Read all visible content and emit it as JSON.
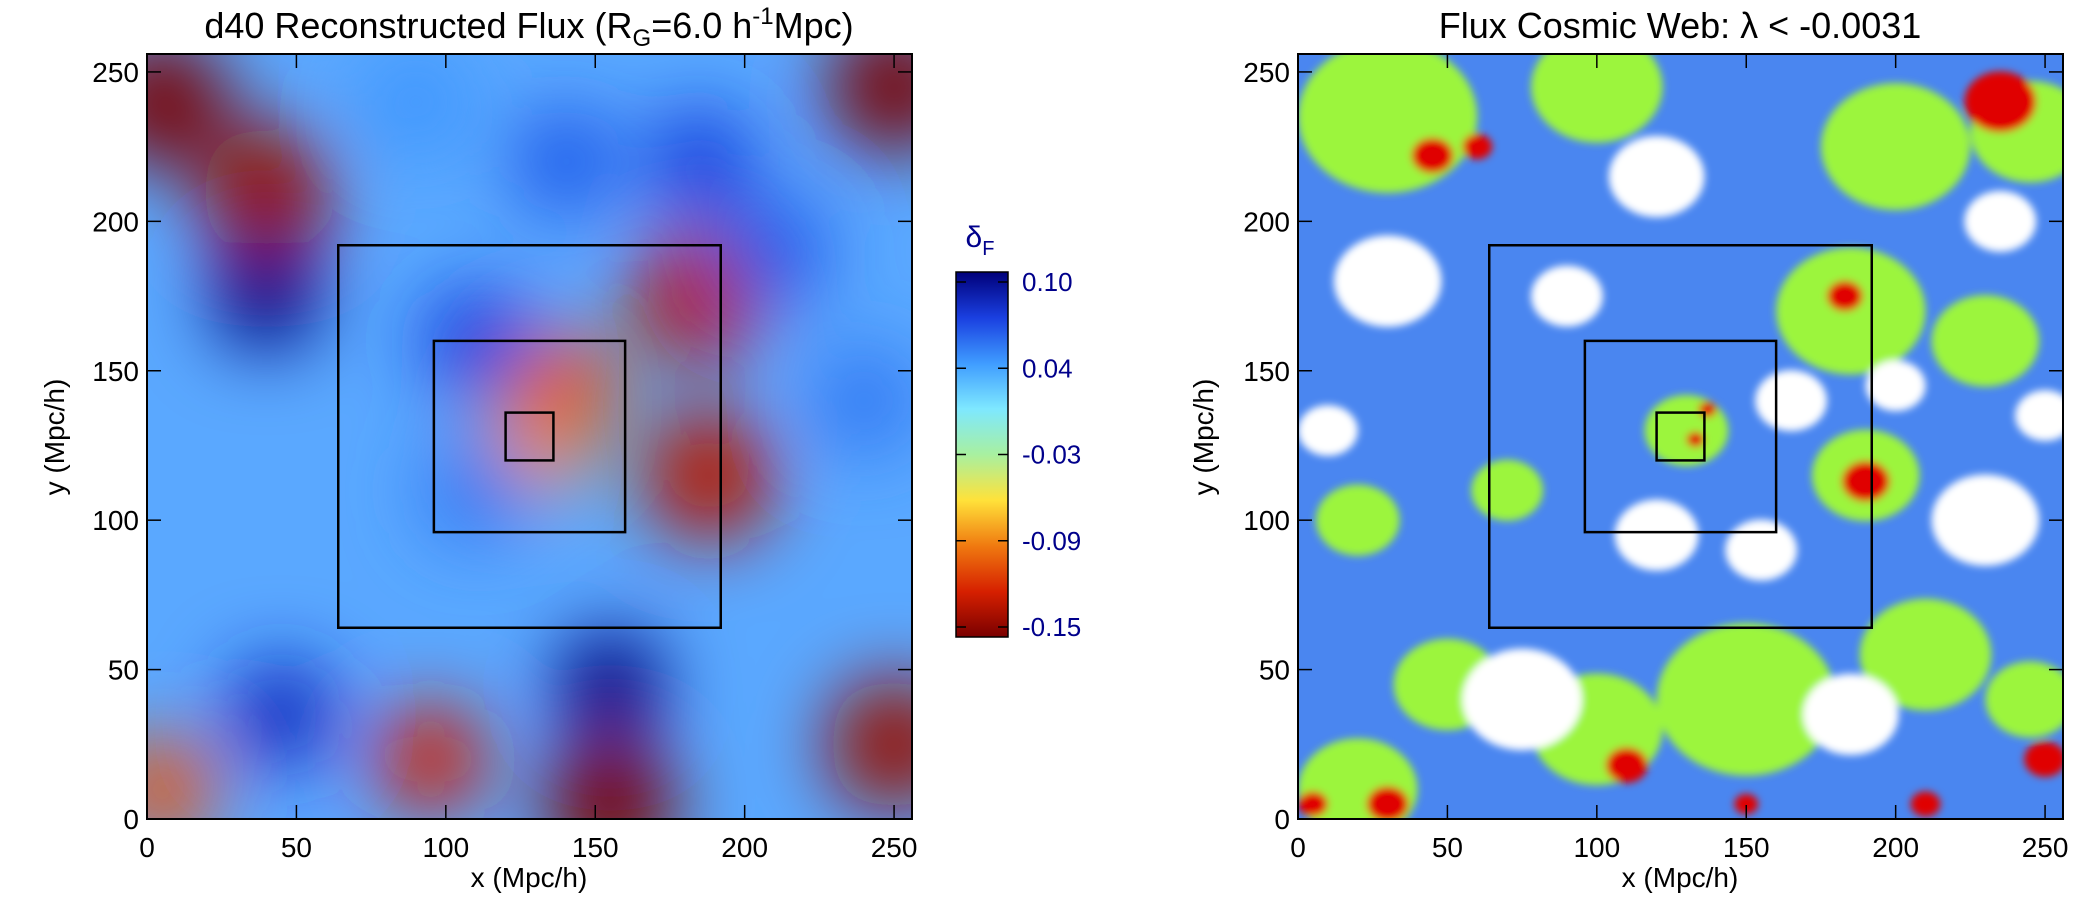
{
  "chart_data": [
    {
      "type": "heatmap",
      "title": {
        "prefix": "d40 Reconstructed Flux (R",
        "sub": "G",
        "mid": "=6.0 h",
        "sup": "-1",
        "suffix": "Mpc)"
      },
      "xlabel": "x (Mpc/h)",
      "ylabel": "y (Mpc/h)",
      "xlim": [
        0,
        256
      ],
      "ylim": [
        0,
        256
      ],
      "x_ticks": [
        "0",
        "50",
        "100",
        "150",
        "200",
        "250"
      ],
      "y_ticks": [
        "0",
        "50",
        "100",
        "150",
        "200",
        "250"
      ],
      "colorbar": {
        "label_main": "δ",
        "label_sub": "F",
        "ticks": [
          "0.10",
          "0.04",
          "-0.03",
          "-0.09",
          "-0.15"
        ],
        "range": [
          -0.15,
          0.1
        ],
        "colors": [
          "#7a0000",
          "#d62000",
          "#f07a10",
          "#ffe23a",
          "#a8f0a0",
          "#7ee8ff",
          "#3f9cff",
          "#1a3fe0",
          "#00007a"
        ]
      },
      "boxes": [
        {
          "name": "outer",
          "x0": 64,
          "x1": 192,
          "y0": 64,
          "y1": 192
        },
        {
          "name": "middle",
          "x0": 96,
          "x1": 160,
          "y0": 96,
          "y1": 160
        },
        {
          "name": "inner",
          "x0": 120,
          "x1": 136,
          "y0": 120,
          "y1": 136
        }
      ],
      "blobs": [
        {
          "x": 5,
          "y": 240,
          "v": -0.15
        },
        {
          "x": 40,
          "y": 210,
          "v": -0.14
        },
        {
          "x": 250,
          "y": 245,
          "v": -0.15
        },
        {
          "x": 185,
          "y": 175,
          "v": -0.13
        },
        {
          "x": 188,
          "y": 115,
          "v": -0.13
        },
        {
          "x": 130,
          "y": 125,
          "v": -0.08
        },
        {
          "x": 140,
          "y": 145,
          "v": -0.1
        },
        {
          "x": 95,
          "y": 20,
          "v": -0.12
        },
        {
          "x": 155,
          "y": 5,
          "v": -0.15
        },
        {
          "x": 250,
          "y": 25,
          "v": -0.14
        },
        {
          "x": 5,
          "y": 10,
          "v": -0.1
        },
        {
          "x": 40,
          "y": 175,
          "v": 0.1
        },
        {
          "x": 155,
          "y": 45,
          "v": 0.1
        },
        {
          "x": 45,
          "y": 35,
          "v": 0.08
        },
        {
          "x": 110,
          "y": 160,
          "v": 0.07
        },
        {
          "x": 185,
          "y": 220,
          "v": 0.07
        },
        {
          "x": 140,
          "y": 220,
          "v": 0.06
        },
        {
          "x": 210,
          "y": 190,
          "v": 0.06
        },
        {
          "x": 240,
          "y": 140,
          "v": 0.05
        },
        {
          "x": 90,
          "y": 240,
          "v": 0.04
        },
        {
          "x": 110,
          "y": 110,
          "v": 0.05
        }
      ]
    },
    {
      "type": "heatmap",
      "title": {
        "prefix": "Flux Cosmic Web: ",
        "lambda": "λ",
        "suffix": " < -0.0031"
      },
      "xlabel": "x (Mpc/h)",
      "ylabel": "y (Mpc/h)",
      "xlim": [
        0,
        256
      ],
      "ylim": [
        0,
        256
      ],
      "x_ticks": [
        "0",
        "50",
        "100",
        "150",
        "200",
        "250"
      ],
      "y_ticks": [
        "0",
        "50",
        "100",
        "150",
        "200",
        "250"
      ],
      "class_colors": {
        "void": "#ffffff",
        "sheet": "#4a86f0",
        "filament": "#9cf53d",
        "knot": "#e00000"
      },
      "boxes": [
        {
          "name": "outer",
          "x0": 64,
          "x1": 192,
          "y0": 64,
          "y1": 192
        },
        {
          "name": "middle",
          "x0": 96,
          "x1": 160,
          "y0": 96,
          "y1": 160
        },
        {
          "name": "inner",
          "x0": 120,
          "x1": 136,
          "y0": 120,
          "y1": 136
        }
      ],
      "regions": [
        {
          "cls": "filament",
          "x": 30,
          "y": 235,
          "r": 30
        },
        {
          "cls": "filament",
          "x": 100,
          "y": 245,
          "r": 22
        },
        {
          "cls": "filament",
          "x": 200,
          "y": 225,
          "r": 25
        },
        {
          "cls": "filament",
          "x": 245,
          "y": 230,
          "r": 20
        },
        {
          "cls": "filament",
          "x": 185,
          "y": 170,
          "r": 25
        },
        {
          "cls": "filament",
          "x": 230,
          "y": 160,
          "r": 18
        },
        {
          "cls": "filament",
          "x": 130,
          "y": 130,
          "r": 14
        },
        {
          "cls": "filament",
          "x": 190,
          "y": 115,
          "r": 18
        },
        {
          "cls": "filament",
          "x": 70,
          "y": 110,
          "r": 12
        },
        {
          "cls": "filament",
          "x": 20,
          "y": 100,
          "r": 14
        },
        {
          "cls": "filament",
          "x": 150,
          "y": 40,
          "r": 30
        },
        {
          "cls": "filament",
          "x": 100,
          "y": 30,
          "r": 22
        },
        {
          "cls": "filament",
          "x": 210,
          "y": 55,
          "r": 22
        },
        {
          "cls": "filament",
          "x": 245,
          "y": 40,
          "r": 15
        },
        {
          "cls": "filament",
          "x": 50,
          "y": 45,
          "r": 18
        },
        {
          "cls": "filament",
          "x": 20,
          "y": 10,
          "r": 20
        },
        {
          "cls": "void",
          "x": 120,
          "y": 215,
          "r": 16
        },
        {
          "cls": "void",
          "x": 30,
          "y": 180,
          "r": 18
        },
        {
          "cls": "void",
          "x": 90,
          "y": 175,
          "r": 12
        },
        {
          "cls": "void",
          "x": 165,
          "y": 140,
          "r": 12
        },
        {
          "cls": "void",
          "x": 120,
          "y": 95,
          "r": 14
        },
        {
          "cls": "void",
          "x": 155,
          "y": 90,
          "r": 12
        },
        {
          "cls": "void",
          "x": 230,
          "y": 100,
          "r": 18
        },
        {
          "cls": "void",
          "x": 75,
          "y": 40,
          "r": 20
        },
        {
          "cls": "void",
          "x": 185,
          "y": 35,
          "r": 16
        },
        {
          "cls": "void",
          "x": 235,
          "y": 200,
          "r": 12
        },
        {
          "cls": "void",
          "x": 200,
          "y": 145,
          "r": 10
        },
        {
          "cls": "void",
          "x": 10,
          "y": 130,
          "r": 10
        },
        {
          "cls": "void",
          "x": 250,
          "y": 135,
          "r": 10
        },
        {
          "cls": "knot",
          "x": 45,
          "y": 222,
          "r": 7
        },
        {
          "cls": "knot",
          "x": 60,
          "y": 225,
          "r": 5
        },
        {
          "cls": "knot",
          "x": 235,
          "y": 240,
          "r": 12
        },
        {
          "cls": "knot",
          "x": 183,
          "y": 175,
          "r": 6
        },
        {
          "cls": "knot",
          "x": 190,
          "y": 113,
          "r": 8
        },
        {
          "cls": "knot",
          "x": 137,
          "y": 137,
          "r": 3
        },
        {
          "cls": "knot",
          "x": 133,
          "y": 127,
          "r": 3
        },
        {
          "cls": "knot",
          "x": 110,
          "y": 18,
          "r": 7
        },
        {
          "cls": "knot",
          "x": 30,
          "y": 5,
          "r": 7
        },
        {
          "cls": "knot",
          "x": 5,
          "y": 5,
          "r": 5
        },
        {
          "cls": "knot",
          "x": 250,
          "y": 20,
          "r": 7
        },
        {
          "cls": "knot",
          "x": 210,
          "y": 5,
          "r": 5
        },
        {
          "cls": "knot",
          "x": 150,
          "y": 5,
          "r": 4
        }
      ]
    }
  ]
}
